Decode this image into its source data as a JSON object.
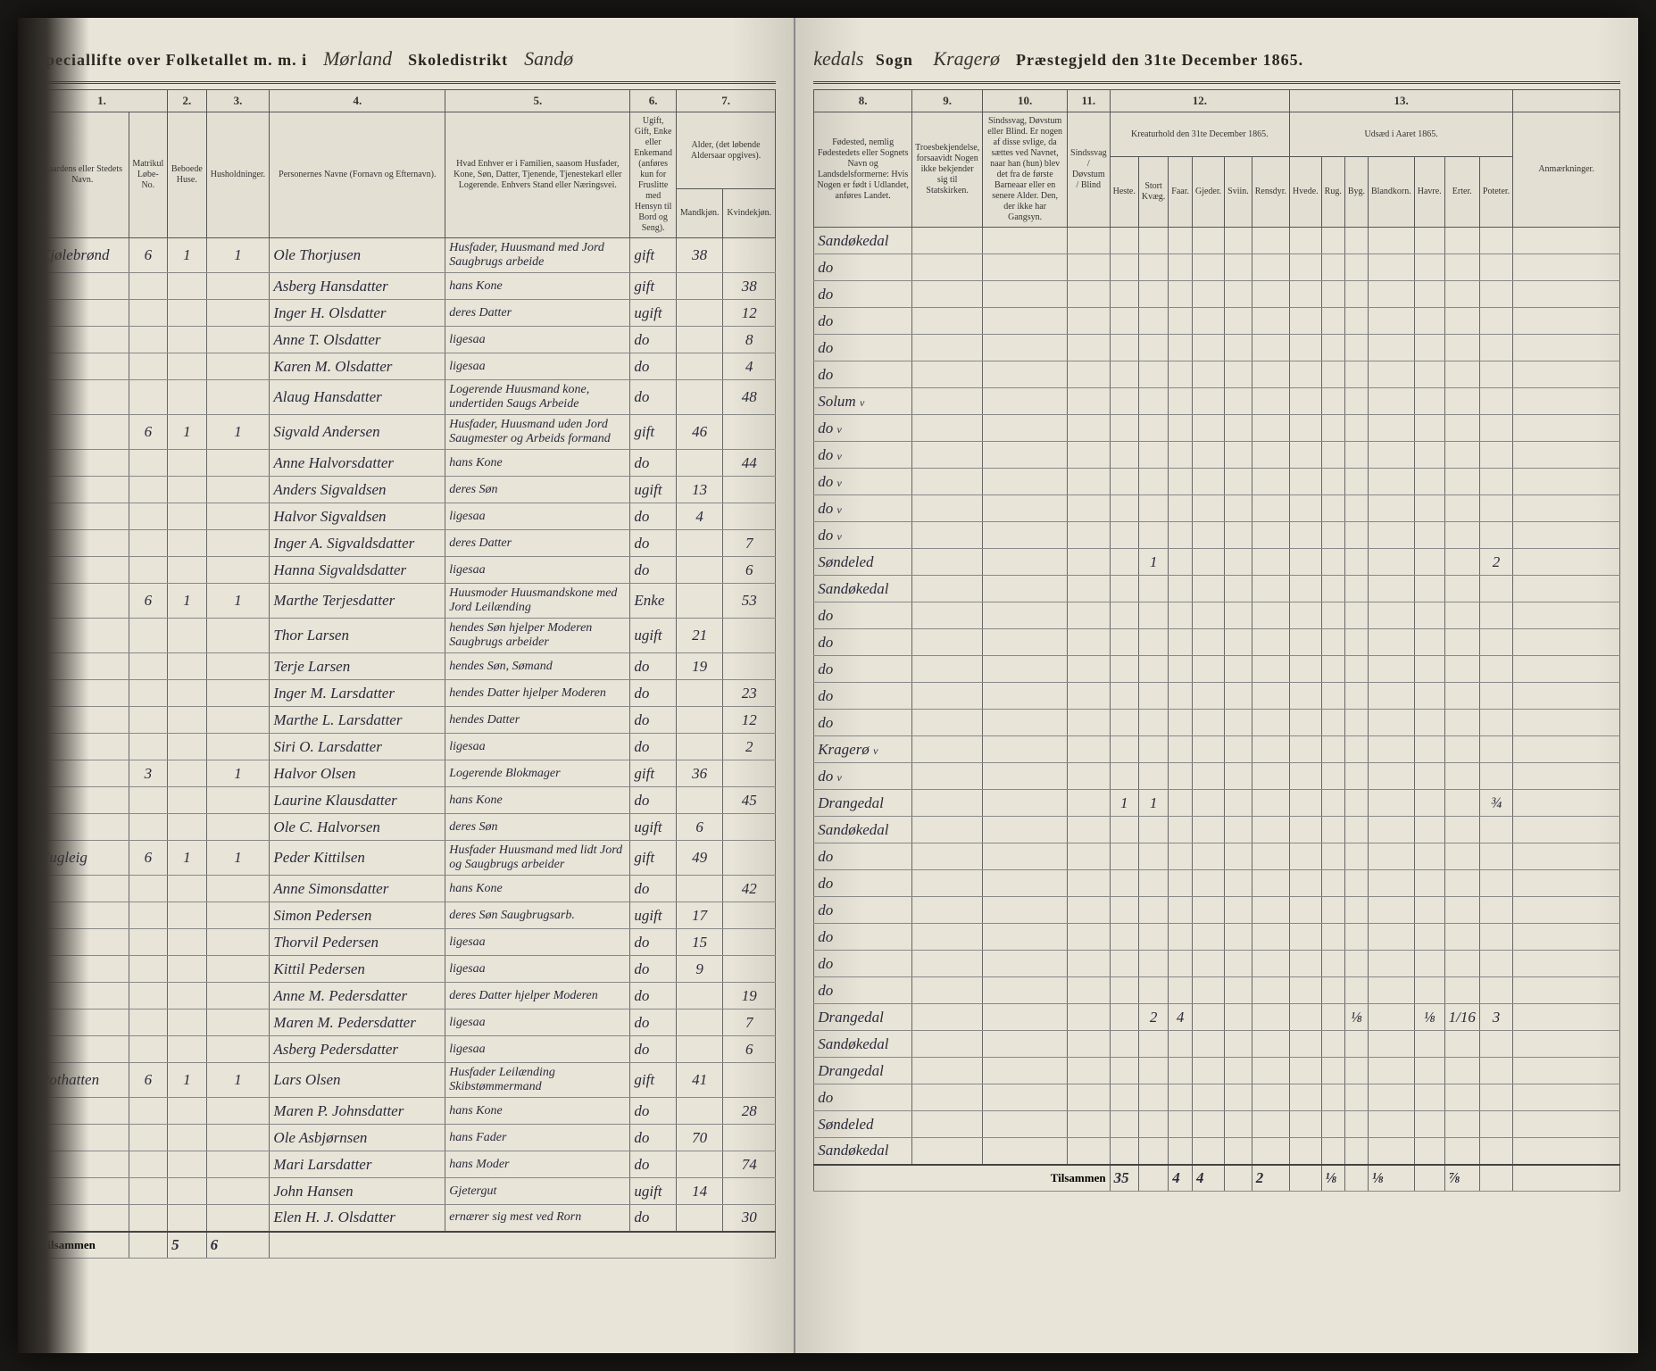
{
  "header": {
    "left_printed_1": "Speciallifte over Folketallet m. m. i",
    "left_script_1": "Mørland",
    "left_printed_2": "Skoledistrikt",
    "left_script_2": "Sandø",
    "right_script_1": "kedals",
    "right_printed_1": "Sogn",
    "right_script_2": "Kragerø",
    "right_printed_2": "Præstegjeld den 31te December 1865."
  },
  "colnums_left": [
    "1.",
    "2.",
    "3.",
    "4.",
    "5.",
    "6.",
    "7."
  ],
  "colnums_right": [
    "8.",
    "9.",
    "10.",
    "11.",
    "12.",
    "13."
  ],
  "colheads_left": {
    "c1": "Gaardens eller Stedets\nNavn.",
    "c2a": "Matrikul Løbe-No.",
    "c2b": "Beboede Huse.",
    "c3": "Husholdninger.",
    "c4": "Personernes Navne (Fornavn og Efternavn).",
    "c5": "Hvad Enhver er i Familien, saasom Husfader, Kone, Søn, Datter, Tjenende, Tjenestekarl eller Logerende.\nEnhvers Stand eller Næringsvei.",
    "c6": "Ugift, Gift, Enke eller Enkemand (anføres kun for Fruslitte med Hensyn til Bord og Seng).",
    "c7a": "Alder, (det løbende Aldersaar opgives).",
    "c7m": "Mandkjøn.",
    "c7k": "Kvindekjøn."
  },
  "colheads_right": {
    "c8": "Fødested, nemlig Fødestedets eller Sognets Navn og Landsdelsformerne: Hvis Nogen er født i Udlandet, anføres Landet.",
    "c9": "Troesbekjendelse, forsaavidt Nogen ikke bekjender sig til Statskirken.",
    "c10": "Sindssvag, Døvstum eller Blind. Er nogen af disse svlige, da sættes ved Navnet, naar han (hun) blev det fra de første Barneaar eller en senere Alder. Den, der ikke har Gangsyn.",
    "c11": "Sindssvag / Døvstum / Blind",
    "c12": "Kreaturhold den 31te December 1865.",
    "c12sub": [
      "Heste.",
      "Stort Kvæg.",
      "Faar.",
      "Gjeder.",
      "Sviin.",
      "Rensdyr."
    ],
    "c13": "Udsæd i Aaret 1865.",
    "c13sub": [
      "Hvede.",
      "Rug.",
      "Byg.",
      "Blandkorn.",
      "Havre.",
      "Erter.",
      "Poteter."
    ],
    "notes": "Anmærkninger."
  },
  "rows": [
    {
      "place": "Kjølebrønd",
      "mn": "6",
      "hh": "1",
      "fm": "1",
      "name": "Ole Thorjusen",
      "rel": "Husfader, Huusmand med Jord Saugbrugs arbeide",
      "stat": "gift",
      "agem": "38",
      "agek": "",
      "birth": "Sandøkedal"
    },
    {
      "name": "Asberg Hansdatter",
      "rel": "hans Kone",
      "stat": "gift",
      "agek": "38",
      "birth": "do"
    },
    {
      "name": "Inger H. Olsdatter",
      "rel": "deres Datter",
      "stat": "ugift",
      "agek": "12",
      "birth": "do"
    },
    {
      "name": "Anne T. Olsdatter",
      "rel": "ligesaa",
      "stat": "do",
      "agek": "8",
      "birth": "do"
    },
    {
      "name": "Karen M. Olsdatter",
      "rel": "ligesaa",
      "stat": "do",
      "agek": "4",
      "birth": "do"
    },
    {
      "name": "Alaug Hansdatter",
      "rel": "Logerende Huusmand kone, undertiden Saugs Arbeide",
      "stat": "do",
      "agek": "48",
      "birth": "do"
    },
    {
      "mn": "6",
      "hh": "1",
      "fm": "1",
      "name": "Sigvald Andersen",
      "rel": "Husfader, Huusmand uden Jord Saugmester og Arbeids formand",
      "stat": "gift",
      "agem": "46",
      "birth": "Solum",
      "mark": "v"
    },
    {
      "name": "Anne Halvorsdatter",
      "rel": "hans Kone",
      "stat": "do",
      "agek": "44",
      "birth": "do",
      "mark": "v"
    },
    {
      "name": "Anders Sigvaldsen",
      "rel": "deres Søn",
      "stat": "ugift",
      "agem": "13",
      "birth": "do",
      "mark": "v"
    },
    {
      "name": "Halvor Sigvaldsen",
      "rel": "ligesaa",
      "stat": "do",
      "agem": "4",
      "birth": "do",
      "mark": "v"
    },
    {
      "name": "Inger A. Sigvaldsdatter",
      "rel": "deres Datter",
      "stat": "do",
      "agek": "7",
      "birth": "do",
      "mark": "v"
    },
    {
      "name": "Hanna Sigvaldsdatter",
      "rel": "ligesaa",
      "stat": "do",
      "agek": "6",
      "birth": "do",
      "mark": "v"
    },
    {
      "mn": "6",
      "hh": "1",
      "fm": "1",
      "name": "Marthe Terjesdatter",
      "rel": "Huusmoder Huusmandskone med Jord Leilænding",
      "stat": "Enke",
      "agek": "53",
      "birth": "Søndeled",
      "c12_2": "1",
      "pot": "2"
    },
    {
      "name": "Thor Larsen",
      "rel": "hendes Søn hjelper Moderen Saugbrugs arbeider",
      "stat": "ugift",
      "agem": "21",
      "birth": "Sandøkedal"
    },
    {
      "name": "Terje Larsen",
      "rel": "hendes Søn, Sømand",
      "stat": "do",
      "agem": "19",
      "birth": "do"
    },
    {
      "name": "Inger M. Larsdatter",
      "rel": "hendes Datter hjelper Moderen",
      "stat": "do",
      "agek": "23",
      "birth": "do"
    },
    {
      "name": "Marthe L. Larsdatter",
      "rel": "hendes Datter",
      "stat": "do",
      "agek": "12",
      "birth": "do"
    },
    {
      "name": "Siri O. Larsdatter",
      "rel": "ligesaa",
      "stat": "do",
      "agek": "2",
      "birth": "do"
    },
    {
      "mn": "3",
      "hh": "",
      "fm": "1",
      "name": "Halvor Olsen",
      "rel": "Logerende Blokmager",
      "stat": "gift",
      "agem": "36",
      "birth": "do"
    },
    {
      "name": "Laurine Klausdatter",
      "rel": "hans Kone",
      "stat": "do",
      "agek": "45",
      "birth": "Kragerø",
      "mark": "v"
    },
    {
      "name": "Ole C. Halvorsen",
      "rel": "deres Søn",
      "stat": "ugift",
      "agem": "6",
      "birth": "do",
      "mark": "v"
    },
    {
      "place": "Fugleig",
      "mn": "6",
      "hh": "1",
      "fm": "1",
      "name": "Peder Kittilsen",
      "rel": "Husfader Huusmand med lidt Jord og Saugbrugs arbeider",
      "stat": "gift",
      "agem": "49",
      "birth": "Drangedal",
      "c12_1": "1",
      "c12_2": "1",
      "pot": "¾"
    },
    {
      "name": "Anne Simonsdatter",
      "rel": "hans Kone",
      "stat": "do",
      "agek": "42",
      "birth": "Sandøkedal"
    },
    {
      "name": "Simon Pedersen",
      "rel": "deres Søn Saugbrugsarb.",
      "stat": "ugift",
      "agem": "17",
      "birth": "do"
    },
    {
      "name": "Thorvil Pedersen",
      "rel": "ligesaa",
      "stat": "do",
      "agem": "15",
      "birth": "do"
    },
    {
      "name": "Kittil Pedersen",
      "rel": "ligesaa",
      "stat": "do",
      "agem": "9",
      "birth": "do"
    },
    {
      "name": "Anne M. Pedersdatter",
      "rel": "deres Datter hjelper Moderen",
      "stat": "do",
      "agek": "19",
      "birth": "do"
    },
    {
      "name": "Maren M. Pedersdatter",
      "rel": "ligesaa",
      "stat": "do",
      "agek": "7",
      "birth": "do"
    },
    {
      "name": "Asberg Pedersdatter",
      "rel": "ligesaa",
      "stat": "do",
      "agek": "6",
      "birth": "do"
    },
    {
      "place": "Pothatten",
      "mn": "6",
      "hh": "1",
      "fm": "1",
      "name": "Lars Olsen",
      "rel": "Husfader Leilænding Skibstømmermand",
      "stat": "gift",
      "agem": "41",
      "birth": "Drangedal",
      "c12_1": "",
      "c12_2": "2",
      "c12_3": "4",
      "c13_3": "⅛",
      "c13_5": "⅛",
      "c13_6": "1/16",
      "pot": "3"
    },
    {
      "name": "Maren P. Johnsdatter",
      "rel": "hans Kone",
      "stat": "do",
      "agek": "28",
      "birth": "Sandøkedal"
    },
    {
      "name": "Ole Asbjørnsen",
      "rel": "hans Fader",
      "stat": "do",
      "agem": "70",
      "birth": "Drangedal"
    },
    {
      "name": "Mari Larsdatter",
      "rel": "hans Moder",
      "stat": "do",
      "agek": "74",
      "birth": "do"
    },
    {
      "name": "John Hansen",
      "rel": "Gjetergut",
      "stat": "ugift",
      "agem": "14",
      "birth": "Søndeled"
    },
    {
      "name": "Elen H. J. Olsdatter",
      "rel": "ernærer sig mest ved Rorn",
      "stat": "do",
      "agek": "30",
      "birth": "Sandøkedal"
    }
  ],
  "footer": {
    "left_label": "Tilsammen",
    "left_hh": "5",
    "left_fm": "6",
    "right_label": "Tilsammen",
    "totals": [
      "35",
      "",
      "4",
      "4",
      "",
      "2",
      "",
      "⅛",
      "",
      "⅛",
      "",
      "⅞"
    ]
  }
}
